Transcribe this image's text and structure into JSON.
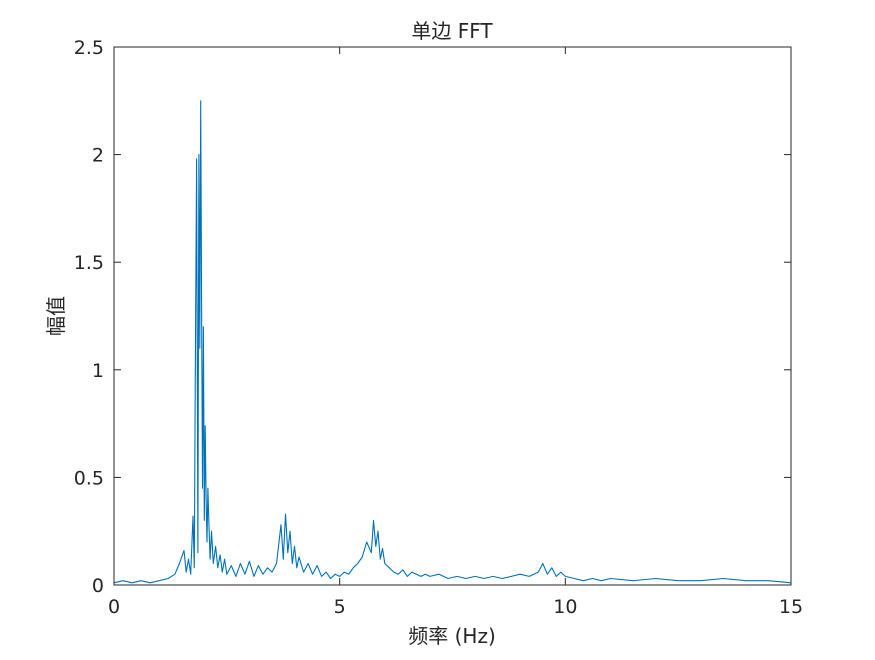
{
  "chart_data": {
    "type": "line",
    "title": "单边 FFT",
    "xlabel": "频率 (Hz)",
    "ylabel": "幅值",
    "xlim": [
      0,
      15
    ],
    "ylim": [
      0,
      2.5
    ],
    "xticks": [
      0,
      5,
      10,
      15
    ],
    "xtick_labels": [
      "0",
      "5",
      "10",
      "15"
    ],
    "yticks": [
      0,
      0.5,
      1,
      1.5,
      2,
      2.5
    ],
    "ytick_labels": [
      "0",
      "0.5",
      "1",
      "1.5",
      "2",
      "2.5"
    ],
    "grid": false,
    "line_color": "#0072BD",
    "series": [
      {
        "x": [
          0,
          0.2,
          0.4,
          0.6,
          0.8,
          1.0,
          1.2,
          1.35,
          1.45,
          1.55,
          1.6,
          1.65,
          1.7,
          1.75,
          1.78,
          1.8,
          1.83,
          1.86,
          1.88,
          1.9,
          1.92,
          1.94,
          1.96,
          1.98,
          2.0,
          2.02,
          2.04,
          2.06,
          2.08,
          2.1,
          2.13,
          2.16,
          2.2,
          2.25,
          2.3,
          2.35,
          2.4,
          2.45,
          2.5,
          2.6,
          2.7,
          2.8,
          2.9,
          3.0,
          3.1,
          3.2,
          3.3,
          3.4,
          3.5,
          3.6,
          3.7,
          3.75,
          3.8,
          3.85,
          3.9,
          3.95,
          4.0,
          4.05,
          4.1,
          4.2,
          4.3,
          4.4,
          4.5,
          4.6,
          4.7,
          4.8,
          4.9,
          5.0,
          5.1,
          5.2,
          5.3,
          5.4,
          5.5,
          5.6,
          5.7,
          5.75,
          5.8,
          5.85,
          5.9,
          5.95,
          6.0,
          6.1,
          6.2,
          6.3,
          6.4,
          6.5,
          6.6,
          6.7,
          6.8,
          6.9,
          7.0,
          7.2,
          7.4,
          7.6,
          7.8,
          8.0,
          8.2,
          8.4,
          8.6,
          8.8,
          9.0,
          9.2,
          9.4,
          9.5,
          9.6,
          9.7,
          9.8,
          9.9,
          10.0,
          10.2,
          10.4,
          10.6,
          10.8,
          11.0,
          11.5,
          12.0,
          12.5,
          13.0,
          13.5,
          14.0,
          14.5,
          15.0
        ],
        "y": [
          0.01,
          0.02,
          0.01,
          0.02,
          0.01,
          0.02,
          0.03,
          0.05,
          0.1,
          0.16,
          0.06,
          0.12,
          0.05,
          0.32,
          0.08,
          0.9,
          1.98,
          0.15,
          2.0,
          1.1,
          2.25,
          1.3,
          0.45,
          1.2,
          0.3,
          0.74,
          0.4,
          0.2,
          0.45,
          0.3,
          0.12,
          0.25,
          0.1,
          0.18,
          0.08,
          0.14,
          0.06,
          0.12,
          0.05,
          0.09,
          0.04,
          0.1,
          0.05,
          0.11,
          0.04,
          0.09,
          0.05,
          0.08,
          0.06,
          0.1,
          0.28,
          0.12,
          0.33,
          0.15,
          0.25,
          0.1,
          0.18,
          0.08,
          0.13,
          0.06,
          0.1,
          0.05,
          0.09,
          0.04,
          0.06,
          0.03,
          0.05,
          0.04,
          0.06,
          0.05,
          0.08,
          0.1,
          0.13,
          0.2,
          0.15,
          0.3,
          0.18,
          0.25,
          0.12,
          0.17,
          0.1,
          0.08,
          0.06,
          0.05,
          0.07,
          0.04,
          0.06,
          0.05,
          0.04,
          0.05,
          0.04,
          0.05,
          0.03,
          0.04,
          0.03,
          0.04,
          0.03,
          0.04,
          0.03,
          0.04,
          0.05,
          0.04,
          0.06,
          0.1,
          0.05,
          0.08,
          0.04,
          0.06,
          0.04,
          0.03,
          0.02,
          0.03,
          0.02,
          0.03,
          0.02,
          0.03,
          0.02,
          0.02,
          0.03,
          0.02,
          0.02,
          0.01
        ]
      }
    ]
  }
}
